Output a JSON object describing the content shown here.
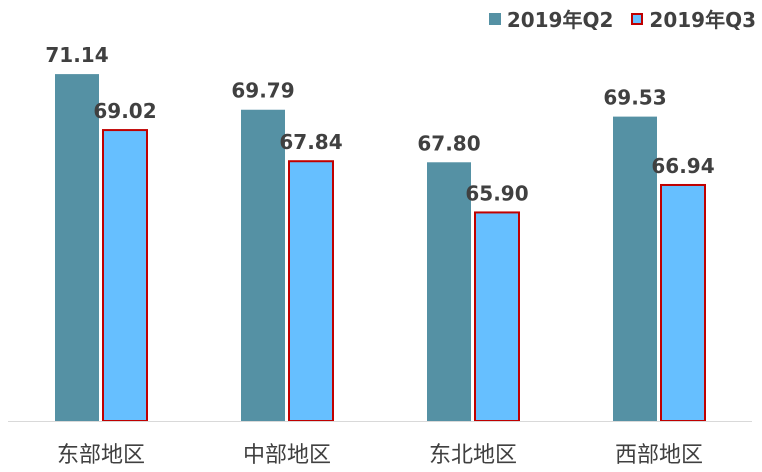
{
  "chart_data": {
    "type": "bar",
    "title": "",
    "xlabel": "",
    "ylabel": "",
    "categories": [
      "东部地区",
      "中部地区",
      "东北地区",
      "西部地区"
    ],
    "series": [
      {
        "name": "2019年Q2",
        "values": [
          71.14,
          69.79,
          67.8,
          69.53
        ],
        "labels": [
          "71.14",
          "69.79",
          "67.80",
          "69.53"
        ],
        "color": "#5591a4",
        "border": "#5591a4"
      },
      {
        "name": "2019年Q3",
        "values": [
          69.02,
          67.84,
          65.9,
          66.94
        ],
        "labels": [
          "69.02",
          "67.84",
          "65.90",
          "66.94"
        ],
        "color": "#66bfff",
        "border": "#c00000"
      }
    ],
    "ylim": [
      58,
      73
    ],
    "grid": false,
    "legend_position": "top-right",
    "data_labels": true
  }
}
